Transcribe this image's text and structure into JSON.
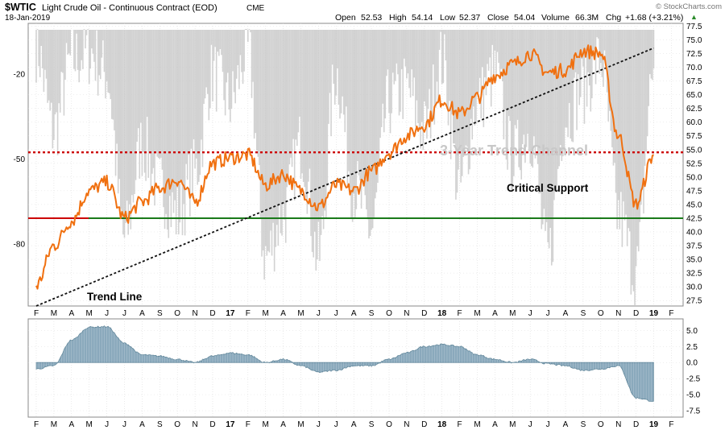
{
  "header": {
    "symbol": "$WTIC",
    "name": "Light Crude Oil - Continuous Contract (EOD)",
    "exchange": "CME",
    "date": "18-Jan-2019",
    "open_label": "Open",
    "open": "52.53",
    "high_label": "High",
    "high": "54.14",
    "low_label": "Low",
    "low": "52.37",
    "close_label": "Close",
    "close": "54.04",
    "volume_label": "Volume",
    "volume": "66.3M",
    "chg_label": "Chg",
    "chg": "+1.68 (+3.21%)",
    "arrow": "▲",
    "brand": "© StockCharts.com"
  },
  "colors": {
    "price": "#f07010",
    "volatility": "#c8c8c8",
    "resistance": "#cc0000",
    "support": "#1a7a1a",
    "trend": "#111111",
    "oscillator": "#8aa9bc",
    "oscillator_edge": "#5f8599",
    "grid": "#dddddd"
  },
  "chart_data": [
    {
      "type": "line",
      "panel": "price",
      "x_ticks": [
        "F",
        "M",
        "A",
        "M",
        "J",
        "J",
        "A",
        "S",
        "O",
        "N",
        "D",
        "17",
        "F",
        "M",
        "A",
        "M",
        "J",
        "J",
        "A",
        "S",
        "O",
        "N",
        "D",
        "18",
        "F",
        "M",
        "A",
        "M",
        "J",
        "J",
        "A",
        "S",
        "O",
        "N",
        "D",
        "19",
        "F"
      ],
      "right_axis": {
        "ticks": [
          "77.5",
          "75.0",
          "72.5",
          "70.0",
          "67.5",
          "65.0",
          "62.5",
          "60.0",
          "57.5",
          "55.0",
          "52.5",
          "50.0",
          "47.5",
          "45.0",
          "42.5",
          "40.0",
          "37.5",
          "35.0",
          "32.5",
          "30.0",
          "27.5"
        ],
        "ylim": [
          26.5,
          78
        ]
      },
      "left_axis": {
        "ticks": [
          "-20",
          "-50",
          "-80"
        ],
        "ylim": [
          -102,
          -2
        ]
      },
      "series": [
        {
          "role": "price",
          "x": [
            "2016-02",
            "2016-03",
            "2016-04",
            "2016-05",
            "2016-06",
            "2016-07",
            "2016-08",
            "2016-09",
            "2016-10",
            "2016-11",
            "2016-12",
            "2017-01",
            "2017-02",
            "2017-03",
            "2017-04",
            "2017-05",
            "2017-06",
            "2017-07",
            "2017-08",
            "2017-09",
            "2017-10",
            "2017-11",
            "2017-12",
            "2018-01",
            "2018-02",
            "2018-03",
            "2018-04",
            "2018-05",
            "2018-06",
            "2018-07",
            "2018-08",
            "2018-09",
            "2018-10",
            "2018-11",
            "2018-12",
            "2019-01"
          ],
          "values": [
            30.2,
            37.5,
            42.0,
            47.5,
            49.0,
            42.5,
            45.5,
            48.0,
            49.5,
            45.5,
            52.5,
            53.5,
            54.0,
            48.5,
            50.5,
            47.5,
            44.5,
            48.5,
            47.5,
            51.0,
            54.5,
            57.5,
            59.5,
            64.0,
            61.5,
            64.5,
            68.5,
            70.5,
            72.5,
            69.0,
            69.5,
            73.0,
            72.5,
            57.5,
            45.0,
            54.04
          ]
        },
        {
          "role": "volatility",
          "x": [
            "2016-02",
            "2016-03",
            "2016-04",
            "2016-05",
            "2016-06",
            "2016-07",
            "2016-08",
            "2016-09",
            "2016-10",
            "2016-11",
            "2016-12",
            "2017-01",
            "2017-02",
            "2017-03",
            "2017-04",
            "2017-05",
            "2017-06",
            "2017-07",
            "2017-08",
            "2017-09",
            "2017-10",
            "2017-11",
            "2017-12",
            "2018-01",
            "2018-02",
            "2018-03",
            "2018-04",
            "2018-05",
            "2018-06",
            "2018-07",
            "2018-08",
            "2018-09",
            "2018-10",
            "2018-11",
            "2018-12",
            "2019-01"
          ],
          "values": [
            -10,
            -40,
            -15,
            -12,
            -20,
            -78,
            -45,
            -60,
            -70,
            -55,
            -20,
            -30,
            -12,
            -85,
            -70,
            -45,
            -85,
            -20,
            -60,
            -75,
            -30,
            -25,
            -40,
            -15,
            -60,
            -30,
            -20,
            -50,
            -40,
            -85,
            -35,
            -25,
            -15,
            -70,
            -90,
            -18
          ]
        }
      ],
      "levels": [
        {
          "role": "resistance",
          "value": 54.5
        },
        {
          "role": "support",
          "value": 42.5
        }
      ],
      "trendline": {
        "from": [
          "2016-02",
          26.5
        ],
        "to": [
          "2019-01",
          73.5
        ]
      },
      "annotations": [
        "3-Year Trend Channel",
        "Critical Support",
        "Trend Line"
      ]
    },
    {
      "type": "area",
      "panel": "oscillator",
      "x_ticks": [
        "F",
        "M",
        "A",
        "M",
        "J",
        "J",
        "A",
        "S",
        "O",
        "N",
        "D",
        "17",
        "F",
        "M",
        "A",
        "M",
        "J",
        "J",
        "A",
        "S",
        "O",
        "N",
        "D",
        "18",
        "F",
        "M",
        "A",
        "M",
        "J",
        "J",
        "A",
        "S",
        "O",
        "N",
        "D",
        "19",
        "F"
      ],
      "axis": {
        "ticks": [
          "5.0",
          "2.5",
          "0.0",
          "-2.5",
          "-5.0",
          "-7.5"
        ],
        "ylim": [
          -8.5,
          6.8
        ]
      },
      "series": [
        {
          "x": [
            "2016-02",
            "2016-03",
            "2016-04",
            "2016-05",
            "2016-06",
            "2016-07",
            "2016-08",
            "2016-09",
            "2016-10",
            "2016-11",
            "2016-12",
            "2017-01",
            "2017-02",
            "2017-03",
            "2017-04",
            "2017-05",
            "2017-06",
            "2017-07",
            "2017-08",
            "2017-09",
            "2017-10",
            "2017-11",
            "2017-12",
            "2018-01",
            "2018-02",
            "2018-03",
            "2018-04",
            "2018-05",
            "2018-06",
            "2018-07",
            "2018-08",
            "2018-09",
            "2018-10",
            "2018-11",
            "2018-12",
            "2019-01"
          ],
          "values": [
            -1.0,
            -0.5,
            3.5,
            5.5,
            5.6,
            3.0,
            1.2,
            1.0,
            0.5,
            0.0,
            1.0,
            1.5,
            1.2,
            0.0,
            0.5,
            -0.5,
            -1.5,
            -1.2,
            -0.5,
            -0.5,
            0.5,
            1.5,
            2.5,
            2.8,
            2.5,
            1.2,
            0.5,
            0.0,
            0.5,
            -0.2,
            -0.5,
            -1.2,
            -1.0,
            -0.5,
            -5.5,
            -6.0
          ]
        }
      ]
    }
  ]
}
